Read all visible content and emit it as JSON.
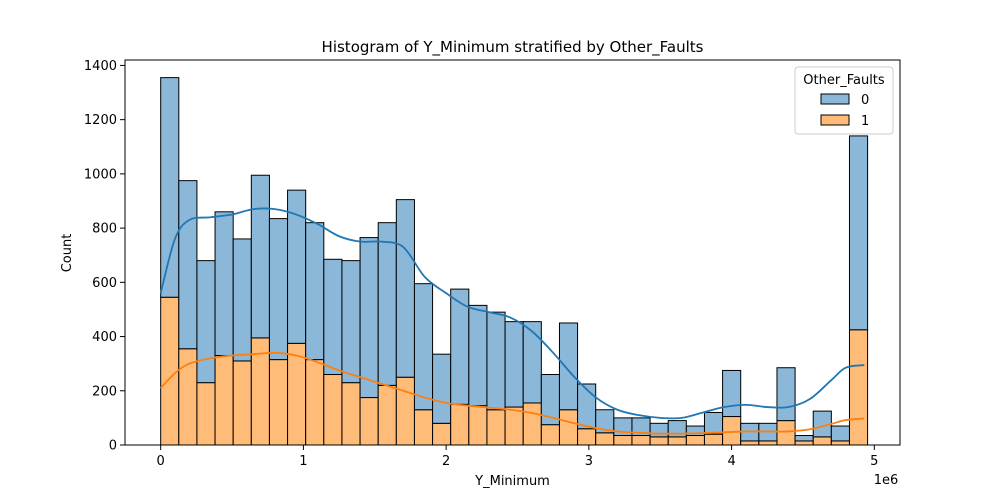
{
  "chart_data": {
    "type": "bar",
    "stacking": "stacked",
    "title": "Histogram of Y_Minimum stratified by Other_Faults",
    "xlabel": "Y_Minimum",
    "ylabel": "Count",
    "x_offset_label": "1e6",
    "xlim": [
      -0.25,
      5.18
    ],
    "ylim": [
      0,
      1420
    ],
    "xticks": [
      0,
      1,
      2,
      3,
      4,
      5
    ],
    "yticks": [
      0,
      200,
      400,
      600,
      800,
      1000,
      1200,
      1400
    ],
    "legend": {
      "title": "Other_Faults",
      "position": "top-right"
    },
    "bin_start": 0.0,
    "bin_width": 0.127,
    "series": [
      {
        "name": "1",
        "color": "#ffbb78",
        "edge": "#000000",
        "values": [
          545,
          355,
          230,
          330,
          310,
          395,
          315,
          375,
          315,
          260,
          230,
          175,
          220,
          250,
          130,
          80,
          150,
          145,
          130,
          140,
          155,
          75,
          130,
          60,
          45,
          35,
          35,
          30,
          30,
          35,
          40,
          105,
          15,
          15,
          90,
          15,
          30,
          15,
          425
        ]
      },
      {
        "name": "0",
        "color": "#8bb8d9",
        "edge": "#000000",
        "values": [
          810,
          620,
          450,
          530,
          450,
          600,
          520,
          565,
          505,
          425,
          450,
          590,
          600,
          655,
          465,
          255,
          425,
          370,
          360,
          315,
          300,
          185,
          320,
          165,
          85,
          65,
          65,
          50,
          60,
          35,
          80,
          170,
          65,
          65,
          195,
          20,
          95,
          55,
          715
        ]
      }
    ],
    "kde": [
      {
        "name": "0",
        "color": "#1f77b4",
        "x": [
          0.0,
          0.1,
          0.2,
          0.35,
          0.5,
          0.65,
          0.8,
          0.95,
          1.1,
          1.25,
          1.4,
          1.55,
          1.7,
          1.85,
          2.0,
          2.15,
          2.3,
          2.45,
          2.6,
          2.75,
          2.9,
          3.05,
          3.2,
          3.35,
          3.5,
          3.65,
          3.8,
          3.95,
          4.1,
          4.25,
          4.4,
          4.55,
          4.7,
          4.8,
          4.93
        ],
        "y": [
          560,
          760,
          830,
          840,
          850,
          870,
          870,
          850,
          815,
          770,
          750,
          750,
          730,
          620,
          560,
          510,
          490,
          470,
          420,
          340,
          250,
          175,
          130,
          110,
          100,
          100,
          120,
          140,
          148,
          140,
          140,
          170,
          240,
          285,
          295
        ]
      },
      {
        "name": "1",
        "color": "#ff7f0e",
        "x": [
          0.0,
          0.1,
          0.2,
          0.35,
          0.5,
          0.65,
          0.8,
          0.95,
          1.1,
          1.25,
          1.4,
          1.55,
          1.7,
          1.85,
          2.0,
          2.15,
          2.3,
          2.45,
          2.6,
          2.75,
          2.9,
          3.05,
          3.2,
          3.35,
          3.5,
          3.65,
          3.8,
          3.95,
          4.1,
          4.25,
          4.4,
          4.55,
          4.7,
          4.8,
          4.93
        ],
        "y": [
          210,
          265,
          300,
          320,
          330,
          335,
          340,
          330,
          305,
          275,
          250,
          225,
          200,
          175,
          155,
          145,
          138,
          130,
          118,
          100,
          80,
          62,
          50,
          45,
          42,
          42,
          44,
          47,
          50,
          50,
          50,
          58,
          78,
          92,
          98
        ]
      }
    ]
  }
}
